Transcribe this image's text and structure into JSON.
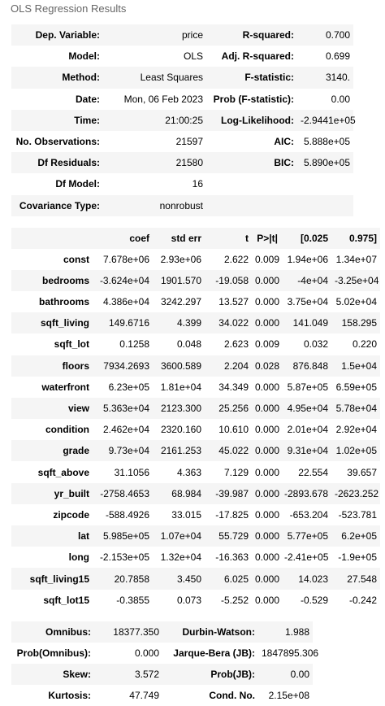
{
  "caption": "OLS Regression Results",
  "summary": {
    "rows": [
      [
        "Dep. Variable:",
        "price",
        "R-squared:",
        "0.700"
      ],
      [
        "Model:",
        "OLS",
        "Adj. R-squared:",
        "0.699"
      ],
      [
        "Method:",
        "Least Squares",
        "F-statistic:",
        "3140."
      ],
      [
        "Date:",
        "Mon, 06 Feb 2023",
        "Prob (F-statistic):",
        "0.00"
      ],
      [
        "Time:",
        "21:00:25",
        "Log-Likelihood:",
        "-2.9441e+05"
      ],
      [
        "No. Observations:",
        "21597",
        "AIC:",
        "5.888e+05"
      ],
      [
        "Df Residuals:",
        "21580",
        "BIC:",
        "5.890e+05"
      ],
      [
        "Df Model:",
        "16",
        "",
        ""
      ],
      [
        "Covariance Type:",
        "nonrobust",
        "",
        ""
      ]
    ]
  },
  "coef": {
    "headers": [
      "",
      "coef",
      "std err",
      "t",
      "P>|t|",
      "[0.025",
      "0.975]"
    ],
    "rows": [
      [
        "const",
        "7.678e+06",
        "2.93e+06",
        "2.622",
        "0.009",
        "1.94e+06",
        "1.34e+07"
      ],
      [
        "bedrooms",
        "-3.624e+04",
        "1901.570",
        "-19.058",
        "0.000",
        "-4e+04",
        "-3.25e+04"
      ],
      [
        "bathrooms",
        "4.386e+04",
        "3242.297",
        "13.527",
        "0.000",
        "3.75e+04",
        "5.02e+04"
      ],
      [
        "sqft_living",
        "149.6716",
        "4.399",
        "34.022",
        "0.000",
        "141.049",
        "158.295"
      ],
      [
        "sqft_lot",
        "0.1258",
        "0.048",
        "2.623",
        "0.009",
        "0.032",
        "0.220"
      ],
      [
        "floors",
        "7934.2693",
        "3600.589",
        "2.204",
        "0.028",
        "876.848",
        "1.5e+04"
      ],
      [
        "waterfront",
        "6.23e+05",
        "1.81e+04",
        "34.349",
        "0.000",
        "5.87e+05",
        "6.59e+05"
      ],
      [
        "view",
        "5.363e+04",
        "2123.300",
        "25.256",
        "0.000",
        "4.95e+04",
        "5.78e+04"
      ],
      [
        "condition",
        "2.462e+04",
        "2320.160",
        "10.610",
        "0.000",
        "2.01e+04",
        "2.92e+04"
      ],
      [
        "grade",
        "9.73e+04",
        "2161.253",
        "45.022",
        "0.000",
        "9.31e+04",
        "1.02e+05"
      ],
      [
        "sqft_above",
        "31.1056",
        "4.363",
        "7.129",
        "0.000",
        "22.554",
        "39.657"
      ],
      [
        "yr_built",
        "-2758.4653",
        "68.984",
        "-39.987",
        "0.000",
        "-2893.678",
        "-2623.252"
      ],
      [
        "zipcode",
        "-588.4926",
        "33.015",
        "-17.825",
        "0.000",
        "-653.204",
        "-523.781"
      ],
      [
        "lat",
        "5.985e+05",
        "1.07e+04",
        "55.729",
        "0.000",
        "5.77e+05",
        "6.2e+05"
      ],
      [
        "long",
        "-2.153e+05",
        "1.32e+04",
        "-16.363",
        "0.000",
        "-2.41e+05",
        "-1.9e+05"
      ],
      [
        "sqft_living15",
        "20.7858",
        "3.450",
        "6.025",
        "0.000",
        "14.023",
        "27.548"
      ],
      [
        "sqft_lot15",
        "-0.3855",
        "0.073",
        "-5.252",
        "0.000",
        "-0.529",
        "-0.242"
      ]
    ]
  },
  "diagnostics": {
    "rows": [
      [
        "Omnibus:",
        "18377.350",
        "Durbin-Watson:",
        "1.988"
      ],
      [
        "Prob(Omnibus):",
        "0.000",
        "Jarque-Bera (JB):",
        "1847895.306"
      ],
      [
        "Skew:",
        "3.572",
        "Prob(JB):",
        "0.00"
      ],
      [
        "Kurtosis:",
        "47.749",
        "Cond. No.",
        "2.15e+08"
      ]
    ]
  }
}
